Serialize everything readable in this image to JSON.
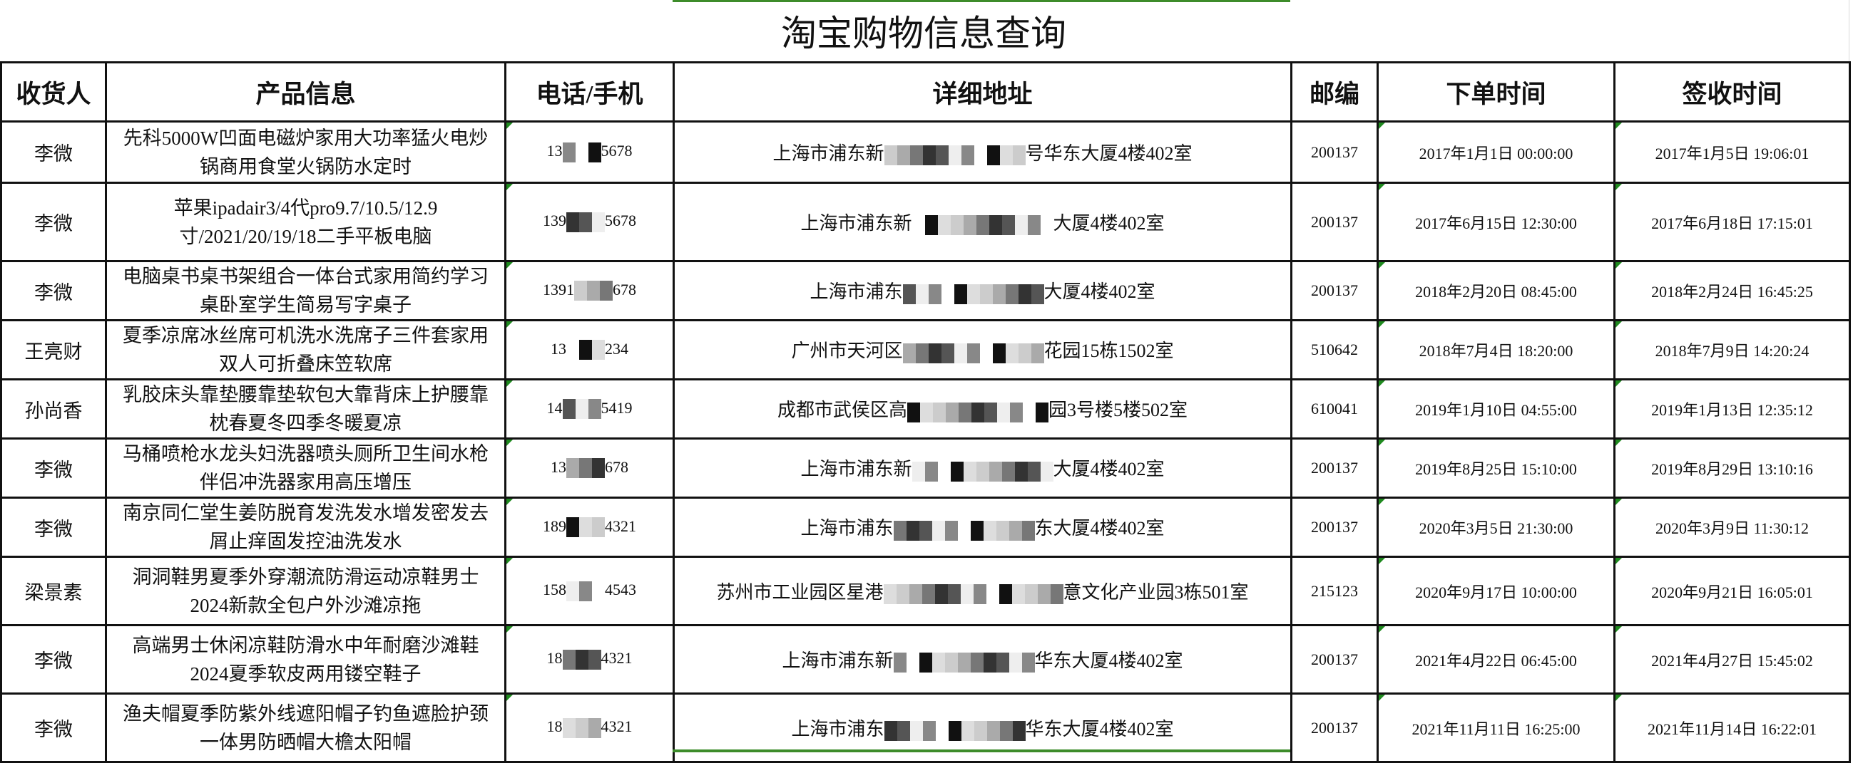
{
  "title": "淘宝购物信息查询",
  "headers": [
    "收货人",
    "产品信息",
    "电话/手机",
    "详细地址",
    "邮编",
    "下单时间",
    "签收时间"
  ],
  "colors": {
    "selection_border": "#3d8c2a",
    "text_marker": "#1f8a1f"
  },
  "rows": [
    {
      "name": "李微",
      "product": "先科5000W凹面电磁炉家用大功率猛火电炒锅商用食堂火锅防水定时",
      "phone_start": "13",
      "phone_end": "5678",
      "addr_start": "上海市浦东新",
      "addr_end": "号华东大厦4楼402室",
      "zip": "200137",
      "order_time": "2017年1月1日 00:00:00",
      "sign_time": "2017年1月5日 19:06:01"
    },
    {
      "name": "李微",
      "product": "苹果ipadair3/4代pro9.7/10.5/12.9寸/2021/20/19/18二手平板电脑",
      "phone_start": "139",
      "phone_end": "5678",
      "addr_start": "上海市浦东新",
      "addr_end": "大厦4楼402室",
      "zip": "200137",
      "order_time": "2017年6月15日 12:30:00",
      "sign_time": "2017年6月18日 17:15:01"
    },
    {
      "name": "李微",
      "product": "电脑桌书桌书架组合一体台式家用简约学习桌卧室学生简易写字桌子",
      "phone_start": "1391",
      "phone_end": "678",
      "addr_start": "上海市浦东",
      "addr_end": "大厦4楼402室",
      "zip": "200137",
      "order_time": "2018年2月20日 08:45:00",
      "sign_time": "2018年2月24日 16:45:25"
    },
    {
      "name": "王亮财",
      "product": "夏季凉席冰丝席可机洗水洗席子三件套家用双人可折叠床笠软席",
      "phone_start": "13",
      "phone_end": "234",
      "addr_start": "广州市天河区",
      "addr_end": "花园15栋1502室",
      "zip": "510642",
      "order_time": "2018年7月4日 18:20:00",
      "sign_time": "2018年7月9日 14:20:24"
    },
    {
      "name": "孙尚香",
      "product": "乳胶床头靠垫腰靠垫软包大靠背床上护腰靠枕春夏冬四季冬暖夏凉",
      "phone_start": "14",
      "phone_end": "5419",
      "addr_start": "成都市武侯区高",
      "addr_end": "园3号楼5楼502室",
      "zip": "610041",
      "order_time": "2019年1月10日 04:55:00",
      "sign_time": "2019年1月13日 12:35:12"
    },
    {
      "name": "李微",
      "product": "马桶喷枪水龙头妇洗器喷头厕所卫生间水枪伴侣冲洗器家用高压增压",
      "phone_start": "13",
      "phone_end": "678",
      "addr_start": "上海市浦东新",
      "addr_end": "大厦4楼402室",
      "zip": "200137",
      "order_time": "2019年8月25日 15:10:00",
      "sign_time": "2019年8月29日 13:10:16"
    },
    {
      "name": "李微",
      "product": "南京同仁堂生姜防脱育发洗发水增发密发去屑止痒固发控油洗发水",
      "phone_start": "189",
      "phone_end": "4321",
      "addr_start": "上海市浦东",
      "addr_end": "东大厦4楼402室",
      "zip": "200137",
      "order_time": "2020年3月5日 21:30:00",
      "sign_time": "2020年3月9日 11:30:12"
    },
    {
      "name": "梁景素",
      "product": "洞洞鞋男夏季外穿潮流防滑运动凉鞋男士2024新款全包户外沙滩凉拖",
      "phone_start": "158",
      "phone_end": "4543",
      "addr_start": "苏州市工业园区星港",
      "addr_end": "意文化产业园3栋501室",
      "zip": "215123",
      "order_time": "2020年9月17日 10:00:00",
      "sign_time": "2020年9月21日 16:05:01"
    },
    {
      "name": "李微",
      "product": "高端男士休闲凉鞋防滑水中年耐磨沙滩鞋2024夏季软皮两用镂空鞋子",
      "phone_start": "18",
      "phone_end": "4321",
      "addr_start": "上海市浦东新",
      "addr_end": "华东大厦4楼402室",
      "zip": "200137",
      "order_time": "2021年4月22日 06:45:00",
      "sign_time": "2021年4月27日 15:45:02"
    },
    {
      "name": "李微",
      "product": "渔夫帽夏季防紫外线遮阳帽子钓鱼遮脸护颈一体男防晒帽大檐太阳帽",
      "phone_start": "18",
      "phone_end": "4321",
      "addr_start": "上海市浦东",
      "addr_end": "华东大厦4楼402室",
      "zip": "200137",
      "order_time": "2021年11月11日 16:25:00",
      "sign_time": "2021年11月14日 16:22:01"
    }
  ]
}
